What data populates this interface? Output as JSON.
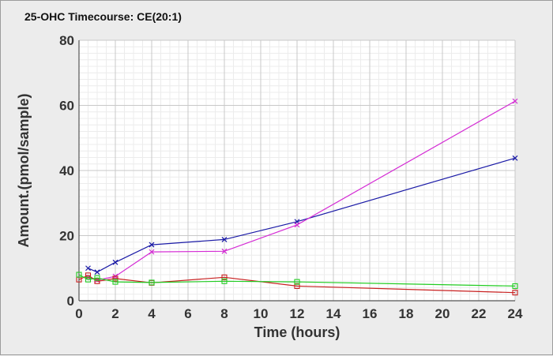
{
  "chart_data": {
    "type": "line",
    "title": "25-OHC Timecourse: CE(20:1)",
    "xlabel": "Time (hours)",
    "ylabel": "Amount.(pmol/sample)",
    "xlim": [
      0,
      24
    ],
    "ylim": [
      0,
      80
    ],
    "x_ticks": [
      0,
      2,
      4,
      6,
      8,
      10,
      12,
      14,
      16,
      18,
      20,
      22,
      24
    ],
    "y_ticks": [
      0,
      20,
      40,
      60,
      80
    ],
    "grid": true,
    "series": [
      {
        "color": "#1a1aa6",
        "marker": "x",
        "points": [
          [
            0.5,
            10.0
          ],
          [
            1,
            8.8
          ],
          [
            2,
            11.8
          ],
          [
            4,
            17.2
          ],
          [
            8,
            18.8
          ],
          [
            12,
            24.3
          ],
          [
            24,
            43.8
          ]
        ]
      },
      {
        "color": "#d42ad4",
        "marker": "x",
        "points": [
          [
            0.5,
            7.2
          ],
          [
            1,
            6.3
          ],
          [
            2,
            7.5
          ],
          [
            4,
            15.0
          ],
          [
            8,
            15.2
          ],
          [
            12,
            23.3
          ],
          [
            24,
            61.3
          ]
        ]
      },
      {
        "color": "#c82020",
        "marker": "square",
        "points": [
          [
            0,
            6.5
          ],
          [
            0.5,
            7.8
          ],
          [
            1,
            6.0
          ],
          [
            2,
            6.8
          ],
          [
            4,
            5.5
          ],
          [
            8,
            7.2
          ],
          [
            12,
            4.5
          ],
          [
            24,
            2.5
          ]
        ]
      },
      {
        "color": "#22cc22",
        "marker": "square",
        "points": [
          [
            0,
            8.0
          ],
          [
            0.5,
            6.5
          ],
          [
            1,
            7.0
          ],
          [
            2,
            5.8
          ],
          [
            4,
            5.6
          ],
          [
            8,
            6.0
          ],
          [
            12,
            5.8
          ],
          [
            24,
            4.5
          ]
        ]
      }
    ]
  }
}
